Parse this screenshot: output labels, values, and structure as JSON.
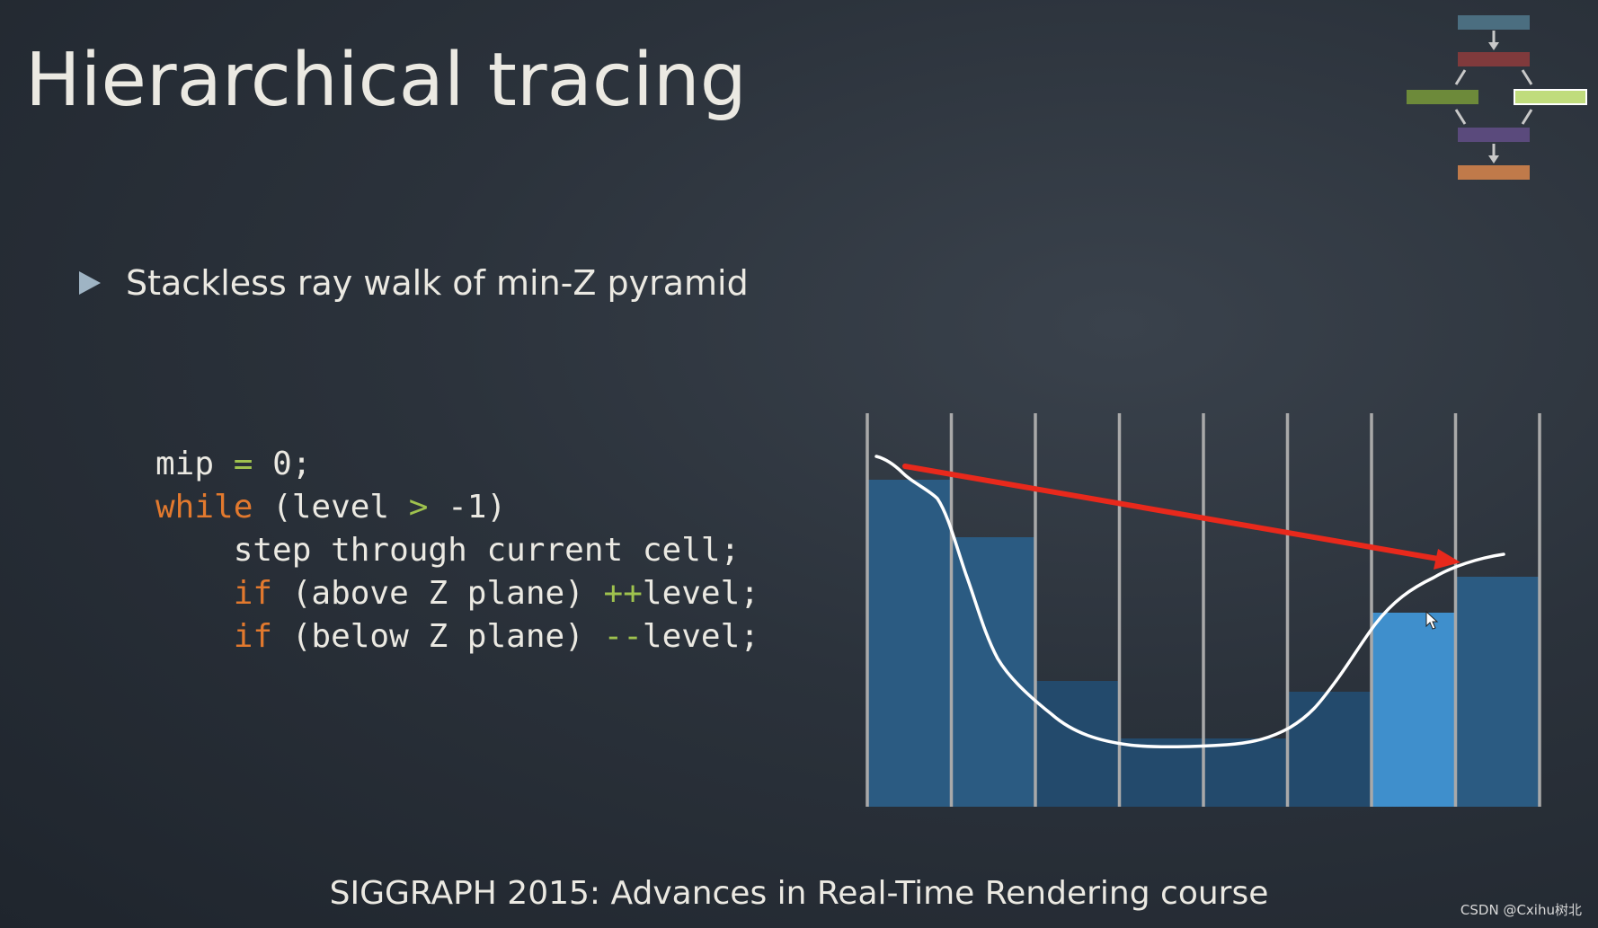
{
  "slide": {
    "title": "Hierarchical tracing",
    "bullet": "Stackless ray walk of min-Z pyramid"
  },
  "code": {
    "line1": {
      "pre": "mip ",
      "op": "=",
      "post": " 0;"
    },
    "line2": {
      "kw": "while",
      "pre": " (level ",
      "op": ">",
      "post": " -1)"
    },
    "line3": {
      "text": "    step through current cell;"
    },
    "line4": {
      "indent": "    ",
      "kw": "if",
      "pre": " (above Z plane) ",
      "op": "++",
      "post": "level;"
    },
    "line5": {
      "indent": "    ",
      "kw": "if",
      "pre": " (below Z plane) ",
      "op": "--",
      "post": "level;"
    }
  },
  "diagram": {
    "cell_count": 8,
    "cell_heights": [
      0.91,
      0.75,
      0.35,
      0.19,
      0.19,
      0.32,
      0.54,
      0.64
    ],
    "highlighted_cell": 6,
    "colors": {
      "cell": "#2b5b82",
      "cell_dark": "#234a6c",
      "highlight": "#3f8fcc",
      "grid": "#a9a9a9",
      "curve": "#ffffff",
      "arrow": "#e8291c"
    }
  },
  "flowchart": {
    "colors": [
      "#4b6e80",
      "#803a3c",
      "#6d8a3a",
      "#c0dc7c",
      "#5a4a7c",
      "#c07a4a"
    ]
  },
  "footer": "SIGGRAPH 2015: Advances in Real-Time Rendering course",
  "watermark": "CSDN @Cxihu树北"
}
